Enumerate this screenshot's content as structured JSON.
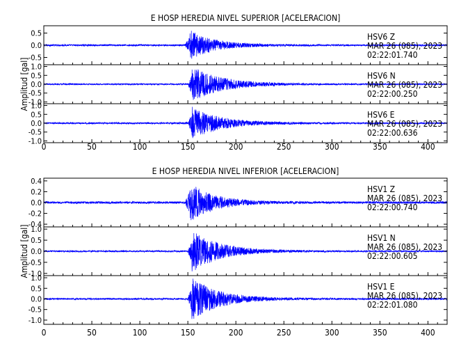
{
  "chart_data": [
    {
      "type": "line",
      "title": "E HOSP HEREDIA NIVEL SUPERIOR [ACELERACION]",
      "xlabel": "",
      "ylabel": "Amplitud [gal]",
      "xlim": [
        0,
        420
      ],
      "x_ticks": [
        0,
        50,
        100,
        150,
        200,
        250,
        300,
        350,
        400
      ],
      "panels": [
        {
          "name": "HSV6",
          "component": "Z",
          "station_line": "HSV6   Z",
          "date": "MAR 26 (085), 2023",
          "time": "02:22:01.740",
          "ylim": [
            -0.8,
            0.8
          ],
          "y_ticks": [
            0.5,
            0.0,
            -0.5
          ],
          "y_tick_labels": [
            "0.5",
            "0.0",
            "-0.5"
          ],
          "noise": 0.035,
          "peak": 0.6,
          "onset": 147,
          "strong": 152,
          "decay": 25
        },
        {
          "name": "HSV6",
          "component": "N",
          "station_line": "HSV6   N",
          "date": "MAR 26 (085), 2023",
          "time": "02:22:00.250",
          "ylim": [
            -1.1,
            1.1
          ],
          "y_ticks": [
            1.0,
            0.5,
            0.0,
            -0.5,
            -1.0
          ],
          "y_tick_labels": [
            "1.0",
            "0.5",
            "0.0",
            "-0.5",
            "-1.0"
          ],
          "noise": 0.04,
          "peak": 1.0,
          "onset": 150,
          "strong": 154,
          "decay": 30
        },
        {
          "name": "HSV6",
          "component": "E",
          "station_line": "HSV6   E",
          "date": "MAR 26 (085), 2023",
          "time": "02:22:00.636",
          "ylim": [
            -1.1,
            1.1
          ],
          "y_ticks": [
            1.0,
            0.5,
            0.0,
            -0.5,
            -1.0
          ],
          "y_tick_labels": [
            "1.0",
            "0.5",
            "0.0",
            "-0.5",
            "-1.0"
          ],
          "noise": 0.045,
          "peak": 0.95,
          "onset": 150,
          "strong": 154,
          "decay": 28
        }
      ]
    },
    {
      "type": "line",
      "title": "E HOSP HEREDIA NIVEL INFERIOR [ACELERACION]",
      "xlabel": "",
      "ylabel": "Amplitud [gal]",
      "xlim": [
        0,
        420
      ],
      "x_ticks": [
        0,
        50,
        100,
        150,
        200,
        250,
        300,
        350,
        400
      ],
      "panels": [
        {
          "name": "HSV1",
          "component": "Z",
          "station_line": "HSV1   Z",
          "date": "MAR 26 (085), 2023",
          "time": "02:22:00.740",
          "ylim": [
            -0.45,
            0.45
          ],
          "y_ticks": [
            0.4,
            0.2,
            0.0,
            -0.2,
            -0.4
          ],
          "y_tick_labels": [
            "0.4",
            "0.2",
            "0.0",
            "-0.2",
            "-0.4"
          ],
          "noise": 0.02,
          "peak": 0.35,
          "onset": 147,
          "strong": 152,
          "decay": 25
        },
        {
          "name": "HSV1",
          "component": "N",
          "station_line": "HSV1   N",
          "date": "MAR 26 (085), 2023",
          "time": "02:22:00.605",
          "ylim": [
            -1.1,
            1.1
          ],
          "y_ticks": [
            1.0,
            0.5,
            0.0,
            -0.5,
            -1.0
          ],
          "y_tick_labels": [
            "1.0",
            "0.5",
            "0.0",
            "-0.5",
            "-1.0"
          ],
          "noise": 0.035,
          "peak": 0.95,
          "onset": 150,
          "strong": 154,
          "decay": 28
        },
        {
          "name": "HSV1",
          "component": "E",
          "station_line": "HSV1   E",
          "date": "MAR 26 (085), 2023",
          "time": "02:22:01.080",
          "ylim": [
            -1.2,
            1.1
          ],
          "y_ticks": [
            1.0,
            0.5,
            0.0,
            -0.5,
            -1.0
          ],
          "y_tick_labels": [
            "1.0",
            "0.5",
            "0.0",
            "-0.5",
            "-1.0"
          ],
          "noise": 0.04,
          "peak": 1.0,
          "onset": 150,
          "strong": 154,
          "decay": 28
        }
      ]
    }
  ],
  "style": {
    "trace_color": "#0000ff",
    "axis_color": "#000000",
    "text_color": "#000000"
  }
}
